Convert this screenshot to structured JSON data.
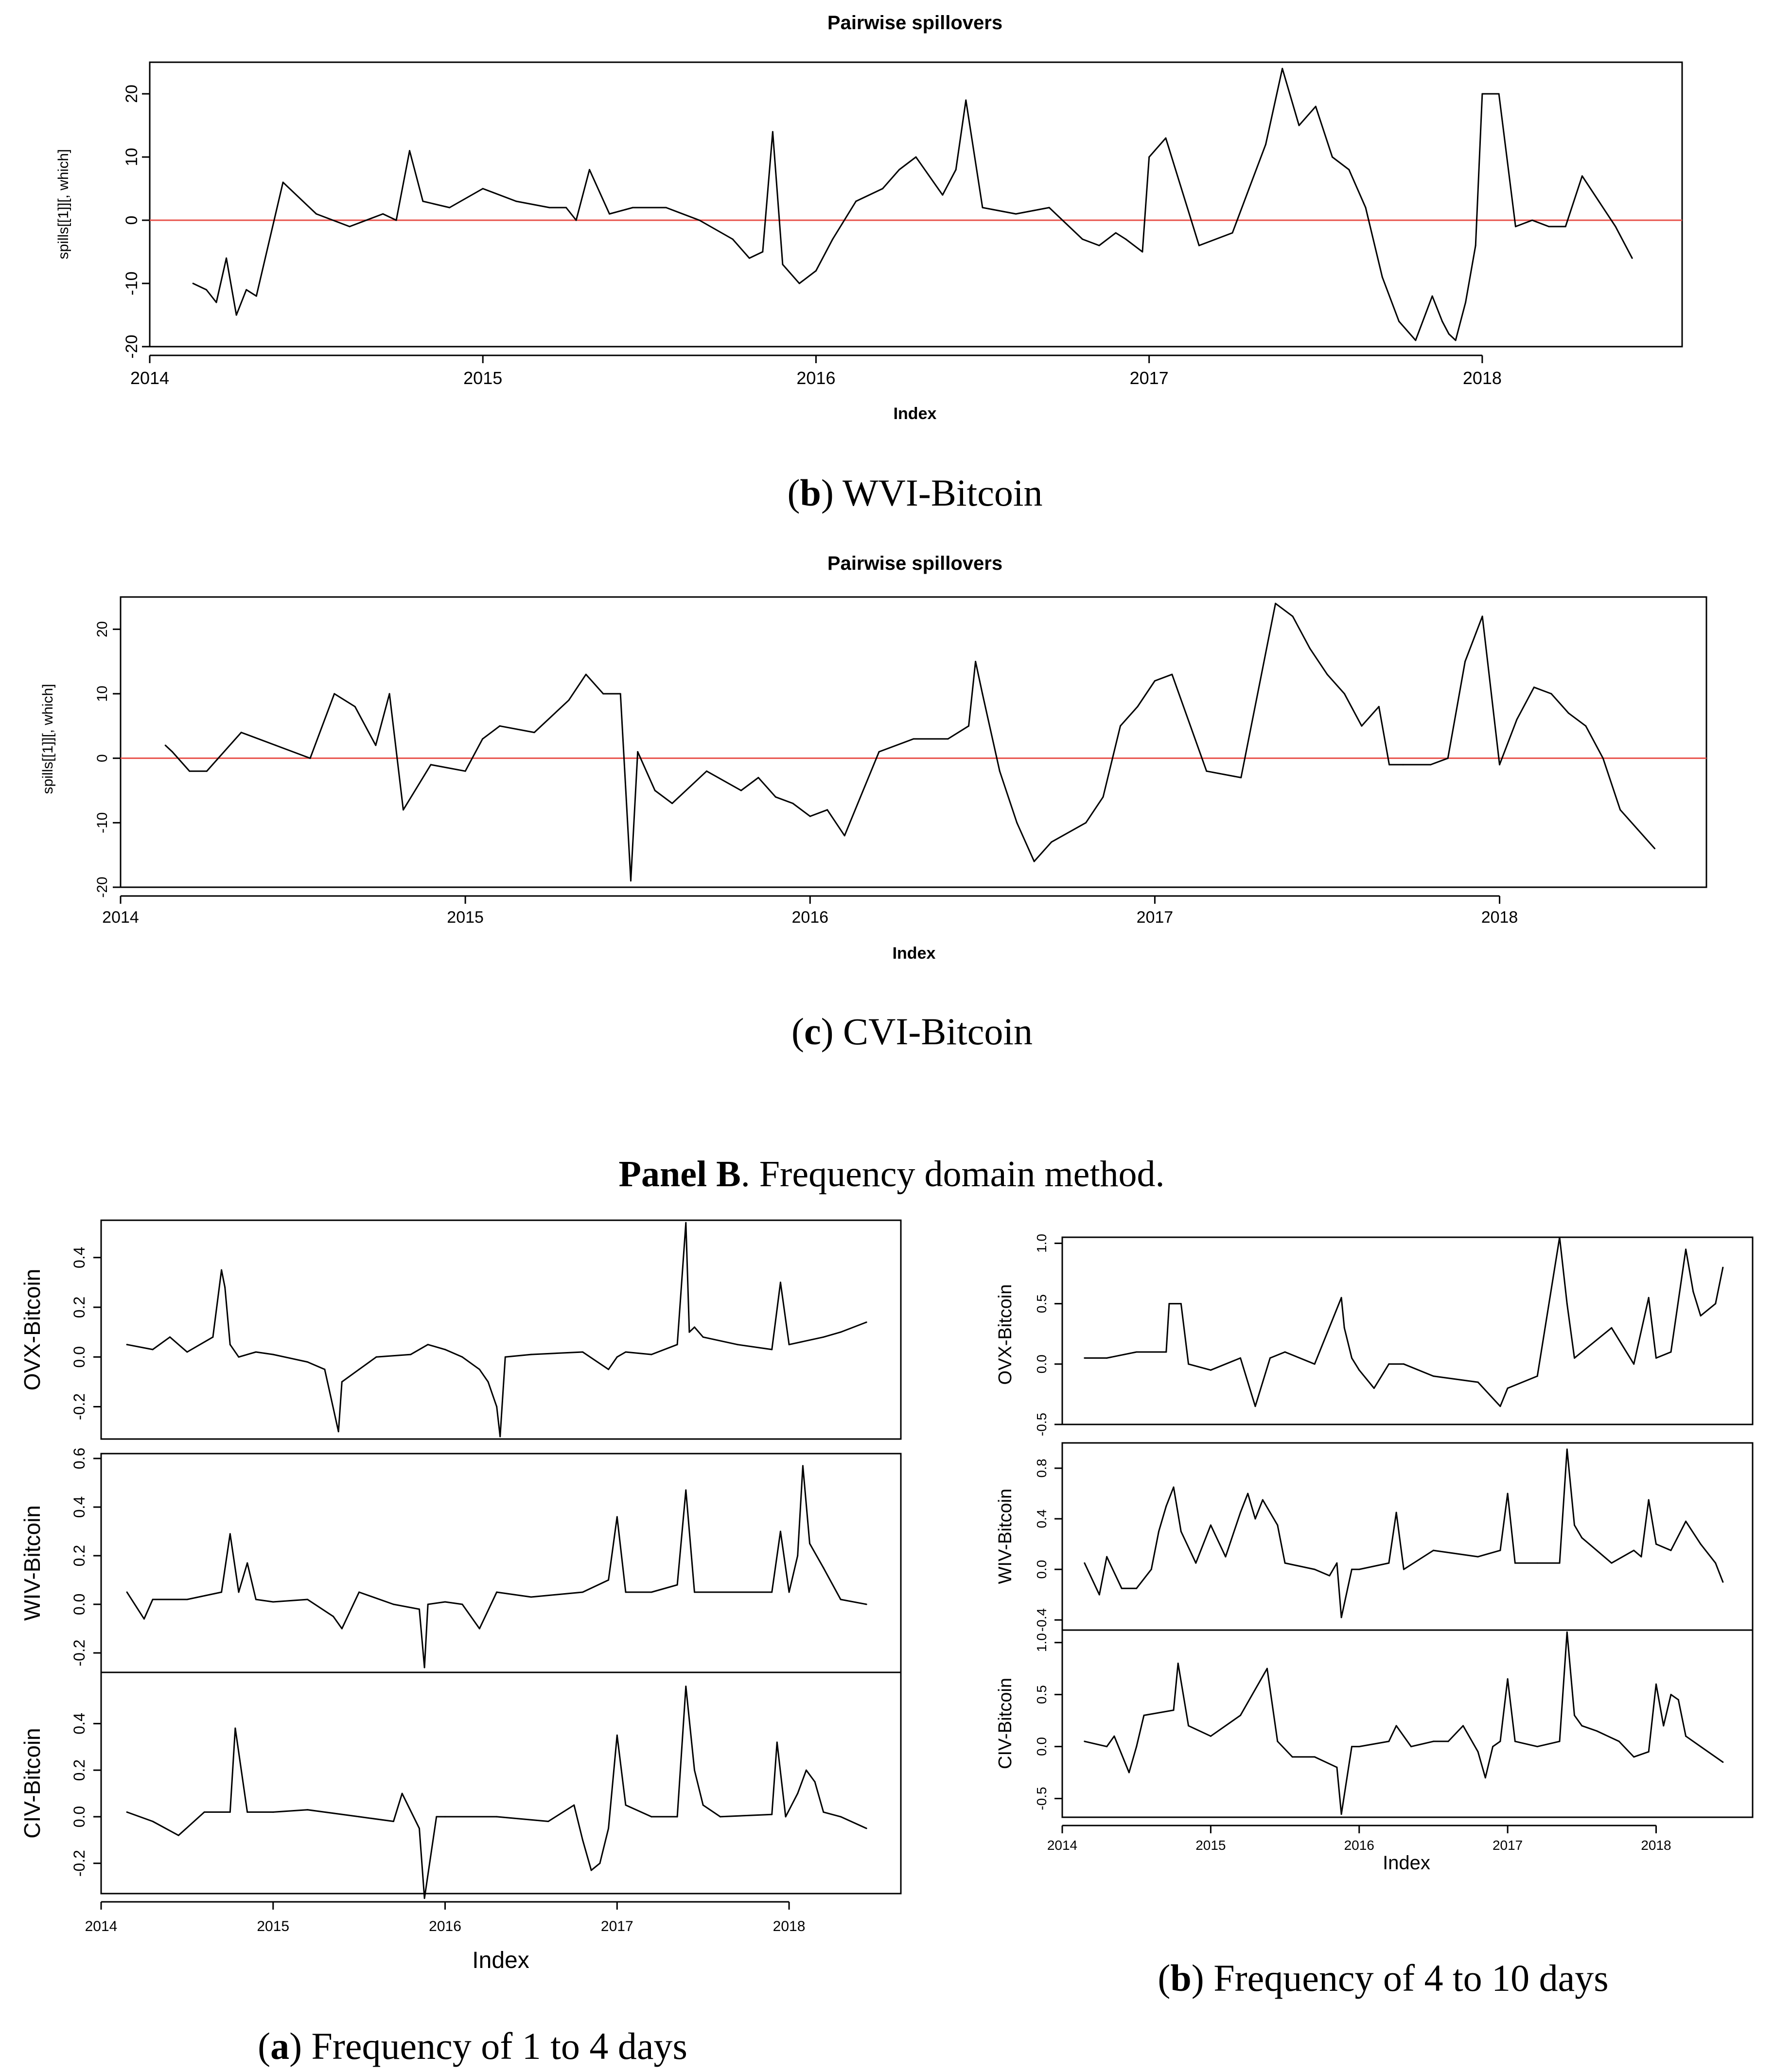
{
  "figure": {
    "caption_b": {
      "letter": "b",
      "text": ") WVI-Bitcoin"
    },
    "caption_c": {
      "letter": "c",
      "text": ") CVI-Bitcoin"
    },
    "panel_b_heading": {
      "bold": "Panel B",
      "text": ". Frequency domain method."
    },
    "caption_freq_a": {
      "letter": "a",
      "text": ") Frequency of 1 to 4 days"
    },
    "caption_freq_b": {
      "letter": "b",
      "text": ") Frequency of 4 to 10 days"
    }
  },
  "colors": {
    "line": "#000000",
    "zero_line": "#e8504a",
    "frame": "#000000"
  },
  "chart_data": [
    {
      "id": "wvi",
      "type": "line",
      "title": "Pairwise spillovers",
      "xlabel": "Index",
      "ylabel": "spills[[1]][, which]",
      "xlim": [
        2014,
        2018.6
      ],
      "ylim": [
        -20,
        25
      ],
      "xticks": [
        "2014",
        "2015",
        "2016",
        "2017",
        "2018"
      ],
      "yticks": [
        "-20",
        "-10",
        "0",
        "10",
        "20"
      ],
      "hline": 0,
      "x": [
        2014.13,
        2014.17,
        2014.2,
        2014.23,
        2014.26,
        2014.29,
        2014.32,
        2014.4,
        2014.5,
        2014.6,
        2014.7,
        2014.74,
        2014.78,
        2014.82,
        2014.9,
        2015.0,
        2015.1,
        2015.2,
        2015.25,
        2015.28,
        2015.32,
        2015.38,
        2015.45,
        2015.55,
        2015.65,
        2015.75,
        2015.8,
        2015.84,
        2015.87,
        2015.9,
        2015.95,
        2016.0,
        2016.05,
        2016.12,
        2016.2,
        2016.25,
        2016.3,
        2016.38,
        2016.42,
        2016.45,
        2016.5,
        2016.6,
        2016.7,
        2016.8,
        2016.85,
        2016.9,
        2016.93,
        2016.98,
        2017.0,
        2017.05,
        2017.15,
        2017.25,
        2017.3,
        2017.35,
        2017.4,
        2017.45,
        2017.5,
        2017.55,
        2017.6,
        2017.65,
        2017.7,
        2017.75,
        2017.8,
        2017.85,
        2017.88,
        2017.9,
        2017.92,
        2017.95,
        2017.98,
        2018.0,
        2018.05,
        2018.1,
        2018.15,
        2018.2,
        2018.25,
        2018.3,
        2018.35,
        2018.4,
        2018.45
      ],
      "y": [
        -10,
        -11,
        -13,
        -6,
        -15,
        -11,
        -12,
        6,
        1,
        -1,
        1,
        0,
        11,
        3,
        2,
        5,
        3,
        2,
        2,
        0,
        8,
        1,
        2,
        2,
        0,
        -3,
        -6,
        -5,
        14,
        -7,
        -10,
        -8,
        -3,
        3,
        5,
        8,
        10,
        4,
        8,
        19,
        2,
        1,
        2,
        -3,
        -4,
        -2,
        -3,
        -5,
        10,
        13,
        -4,
        -2,
        5,
        12,
        24,
        15,
        18,
        10,
        8,
        2,
        -9,
        -16,
        -19,
        -12,
        -16,
        -18,
        -19,
        -13,
        -4,
        20,
        20,
        -1,
        0,
        -1,
        -1,
        7,
        3,
        -1,
        -6
      ]
    },
    {
      "id": "cvi",
      "type": "line",
      "title": "Pairwise spillovers",
      "xlabel": "Index",
      "ylabel": "spills[[1]][, which]",
      "xlim": [
        2014,
        2018.6
      ],
      "ylim": [
        -20,
        25
      ],
      "xticks": [
        "2014",
        "2015",
        "2016",
        "2017",
        "2018"
      ],
      "yticks": [
        "-20",
        "-10",
        "0",
        "10",
        "20"
      ],
      "hline": 0,
      "x": [
        2014.13,
        2014.15,
        2014.2,
        2014.25,
        2014.35,
        2014.45,
        2014.55,
        2014.62,
        2014.68,
        2014.74,
        2014.78,
        2014.82,
        2014.9,
        2015.0,
        2015.05,
        2015.1,
        2015.2,
        2015.3,
        2015.35,
        2015.4,
        2015.45,
        2015.48,
        2015.5,
        2015.55,
        2015.6,
        2015.7,
        2015.8,
        2015.85,
        2015.9,
        2015.95,
        2016.0,
        2016.05,
        2016.1,
        2016.2,
        2016.3,
        2016.4,
        2016.46,
        2016.48,
        2016.5,
        2016.55,
        2016.6,
        2016.65,
        2016.7,
        2016.8,
        2016.85,
        2016.9,
        2016.95,
        2017.0,
        2017.05,
        2017.15,
        2017.25,
        2017.35,
        2017.4,
        2017.45,
        2017.5,
        2017.55,
        2017.6,
        2017.65,
        2017.68,
        2017.72,
        2017.8,
        2017.85,
        2017.9,
        2017.95,
        2018.0,
        2018.05,
        2018.1,
        2018.15,
        2018.2,
        2018.25,
        2018.3,
        2018.35,
        2018.4,
        2018.45
      ],
      "y": [
        2,
        1,
        -2,
        -2,
        4,
        2,
        0,
        10,
        8,
        2,
        10,
        -8,
        -1,
        -2,
        3,
        5,
        4,
        9,
        13,
        10,
        10,
        -19,
        1,
        -5,
        -7,
        -2,
        -5,
        -3,
        -6,
        -7,
        -9,
        -8,
        -12,
        1,
        3,
        3,
        5,
        15,
        10,
        -2,
        -10,
        -16,
        -13,
        -10,
        -6,
        5,
        8,
        12,
        13,
        -2,
        -3,
        24,
        22,
        17,
        13,
        10,
        5,
        8,
        -1,
        -1,
        -1,
        0,
        15,
        22,
        -1,
        6,
        11,
        10,
        7,
        5,
        0,
        -8,
        -11,
        -14
      ]
    },
    {
      "id": "freq_a_ovx",
      "type": "line",
      "ylabel": "OVX-Bitcoin",
      "xlim": [
        2014,
        2018.65
      ],
      "ylim": [
        -0.33,
        0.55
      ],
      "yticks": [
        "-0.2",
        "0.0",
        "0.2",
        "0.4"
      ],
      "x": [
        2014.15,
        2014.3,
        2014.4,
        2014.5,
        2014.65,
        2014.7,
        2014.72,
        2014.75,
        2014.8,
        2014.9,
        2015.0,
        2015.2,
        2015.3,
        2015.38,
        2015.4,
        2015.5,
        2015.6,
        2015.8,
        2015.9,
        2016.0,
        2016.1,
        2016.2,
        2016.25,
        2016.3,
        2016.32,
        2016.35,
        2016.5,
        2016.8,
        2016.95,
        2017.0,
        2017.05,
        2017.2,
        2017.35,
        2017.4,
        2017.42,
        2017.45,
        2017.5,
        2017.7,
        2017.9,
        2017.95,
        2018.0,
        2018.2,
        2018.3,
        2018.45
      ],
      "y": [
        0.05,
        0.03,
        0.08,
        0.02,
        0.08,
        0.35,
        0.28,
        0.05,
        0.0,
        0.02,
        0.01,
        -0.02,
        -0.05,
        -0.3,
        -0.1,
        -0.05,
        0.0,
        0.01,
        0.05,
        0.03,
        0.0,
        -0.05,
        -0.1,
        -0.2,
        -0.32,
        0.0,
        0.01,
        0.02,
        -0.05,
        0.0,
        0.02,
        0.01,
        0.05,
        0.54,
        0.1,
        0.12,
        0.08,
        0.05,
        0.03,
        0.3,
        0.05,
        0.08,
        0.1,
        0.14
      ]
    },
    {
      "id": "freq_a_wiv",
      "type": "line",
      "ylabel": "WIV-Bitcoin",
      "xlim": [
        2014,
        2018.65
      ],
      "ylim": [
        -0.28,
        0.62
      ],
      "yticks": [
        "-0.2",
        "0.0",
        "0.2",
        "0.4",
        "0.6"
      ],
      "x": [
        2014.15,
        2014.25,
        2014.3,
        2014.5,
        2014.7,
        2014.75,
        2014.8,
        2014.85,
        2014.9,
        2015.0,
        2015.2,
        2015.35,
        2015.4,
        2015.5,
        2015.7,
        2015.85,
        2015.88,
        2015.9,
        2016.0,
        2016.1,
        2016.2,
        2016.3,
        2016.5,
        2016.8,
        2016.95,
        2017.0,
        2017.05,
        2017.2,
        2017.35,
        2017.4,
        2017.45,
        2017.5,
        2017.7,
        2017.9,
        2017.95,
        2018.0,
        2018.05,
        2018.08,
        2018.12,
        2018.2,
        2018.3,
        2018.45
      ],
      "y": [
        0.05,
        -0.06,
        0.02,
        0.02,
        0.05,
        0.29,
        0.05,
        0.17,
        0.02,
        0.01,
        0.02,
        -0.05,
        -0.1,
        0.05,
        0.0,
        -0.02,
        -0.26,
        0.0,
        0.01,
        0.0,
        -0.1,
        0.05,
        0.03,
        0.05,
        0.1,
        0.36,
        0.05,
        0.05,
        0.08,
        0.47,
        0.05,
        0.05,
        0.05,
        0.05,
        0.3,
        0.05,
        0.2,
        0.57,
        0.25,
        0.15,
        0.02,
        0.0
      ]
    },
    {
      "id": "freq_a_civ",
      "type": "line",
      "ylabel": "CIV-Bitcoin",
      "xlim": [
        2014,
        2018.65
      ],
      "ylim": [
        -0.33,
        0.62
      ],
      "yticks": [
        "-0.2",
        "0.0",
        "0.2",
        "0.4"
      ],
      "x": [
        2014.15,
        2014.3,
        2014.45,
        2014.6,
        2014.75,
        2014.78,
        2014.85,
        2015.0,
        2015.2,
        2015.5,
        2015.7,
        2015.75,
        2015.85,
        2015.88,
        2015.95,
        2016.0,
        2016.3,
        2016.6,
        2016.75,
        2016.8,
        2016.85,
        2016.9,
        2016.95,
        2017.0,
        2017.05,
        2017.2,
        2017.35,
        2017.4,
        2017.45,
        2017.5,
        2017.6,
        2017.9,
        2017.93,
        2017.98,
        2018.05,
        2018.1,
        2018.15,
        2018.2,
        2018.3,
        2018.45
      ],
      "y": [
        0.02,
        -0.02,
        -0.08,
        0.02,
        0.02,
        0.38,
        0.02,
        0.02,
        0.03,
        0.0,
        -0.02,
        0.1,
        -0.05,
        -0.35,
        0.0,
        0.0,
        0.0,
        -0.02,
        0.05,
        -0.1,
        -0.23,
        -0.2,
        -0.05,
        0.35,
        0.05,
        0.0,
        0.0,
        0.56,
        0.2,
        0.05,
        0.0,
        0.01,
        0.32,
        0.0,
        0.1,
        0.2,
        0.15,
        0.02,
        0.0,
        -0.05
      ]
    },
    {
      "id": "freq_b_ovx",
      "type": "line",
      "ylabel": "OVX-Bitcoin",
      "xlim": [
        2014,
        2018.65
      ],
      "ylim": [
        -0.5,
        1.05
      ],
      "yticks": [
        "-0.5",
        "0.0",
        "0.5",
        "1.0"
      ],
      "x": [
        2014.15,
        2014.3,
        2014.5,
        2014.7,
        2014.72,
        2014.8,
        2014.85,
        2015.0,
        2015.2,
        2015.3,
        2015.4,
        2015.5,
        2015.7,
        2015.88,
        2015.9,
        2015.95,
        2016.0,
        2016.1,
        2016.2,
        2016.3,
        2016.5,
        2016.8,
        2016.95,
        2017.0,
        2017.2,
        2017.35,
        2017.4,
        2017.45,
        2017.5,
        2017.7,
        2017.85,
        2017.95,
        2018.0,
        2018.1,
        2018.2,
        2018.25,
        2018.3,
        2018.4,
        2018.45
      ],
      "y": [
        0.05,
        0.05,
        0.1,
        0.1,
        0.5,
        0.5,
        0.0,
        -0.05,
        0.05,
        -0.35,
        0.05,
        0.1,
        0.0,
        0.55,
        0.3,
        0.05,
        -0.05,
        -0.2,
        0.0,
        0.0,
        -0.1,
        -0.15,
        -0.35,
        -0.2,
        -0.1,
        1.05,
        0.5,
        0.05,
        0.1,
        0.3,
        0.0,
        0.55,
        0.05,
        0.1,
        0.95,
        0.6,
        0.4,
        0.5,
        0.8
      ]
    },
    {
      "id": "freq_b_wiv",
      "type": "line",
      "ylabel": "WIV-Bitcoin",
      "xlim": [
        2014,
        2018.65
      ],
      "ylim": [
        -0.48,
        1.0
      ],
      "yticks": [
        "-0.4",
        "0.0",
        "0.4",
        "0.8"
      ],
      "x": [
        2014.15,
        2014.25,
        2014.3,
        2014.4,
        2014.5,
        2014.6,
        2014.65,
        2014.7,
        2014.75,
        2014.8,
        2014.9,
        2015.0,
        2015.1,
        2015.2,
        2015.25,
        2015.3,
        2015.35,
        2015.45,
        2015.5,
        2015.7,
        2015.8,
        2015.85,
        2015.88,
        2015.95,
        2016.0,
        2016.2,
        2016.25,
        2016.3,
        2016.5,
        2016.8,
        2016.95,
        2017.0,
        2017.05,
        2017.2,
        2017.35,
        2017.4,
        2017.45,
        2017.5,
        2017.7,
        2017.85,
        2017.9,
        2017.95,
        2018.0,
        2018.1,
        2018.2,
        2018.3,
        2018.4,
        2018.45
      ],
      "y": [
        0.05,
        -0.2,
        0.1,
        -0.15,
        -0.15,
        0.0,
        0.3,
        0.5,
        0.65,
        0.3,
        0.05,
        0.35,
        0.1,
        0.45,
        0.6,
        0.4,
        0.55,
        0.35,
        0.05,
        0.0,
        -0.05,
        0.05,
        -0.38,
        0.0,
        0.0,
        0.05,
        0.45,
        0.0,
        0.15,
        0.1,
        0.15,
        0.6,
        0.05,
        0.05,
        0.05,
        0.95,
        0.35,
        0.25,
        0.05,
        0.15,
        0.1,
        0.55,
        0.2,
        0.15,
        0.38,
        0.2,
        0.05,
        -0.1
      ]
    },
    {
      "id": "freq_b_civ",
      "type": "line",
      "ylabel": "CIV-Bitcoin",
      "xlim": [
        2014,
        2018.65
      ],
      "ylim": [
        -0.68,
        1.12
      ],
      "yticks": [
        "-0.5",
        "0.0",
        "0.5",
        "1.0"
      ],
      "x": [
        2014.15,
        2014.3,
        2014.35,
        2014.45,
        2014.5,
        2014.55,
        2014.75,
        2014.78,
        2014.85,
        2015.0,
        2015.2,
        2015.38,
        2015.45,
        2015.55,
        2015.7,
        2015.85,
        2015.88,
        2015.95,
        2016.0,
        2016.2,
        2016.25,
        2016.35,
        2016.5,
        2016.6,
        2016.7,
        2016.8,
        2016.85,
        2016.9,
        2016.95,
        2017.0,
        2017.05,
        2017.2,
        2017.35,
        2017.4,
        2017.45,
        2017.5,
        2017.6,
        2017.75,
        2017.85,
        2017.95,
        2018.0,
        2018.05,
        2018.1,
        2018.15,
        2018.2,
        2018.3,
        2018.45
      ],
      "y": [
        0.05,
        0.0,
        0.1,
        -0.25,
        0.0,
        0.3,
        0.35,
        0.8,
        0.2,
        0.1,
        0.3,
        0.75,
        0.05,
        -0.1,
        -0.1,
        -0.2,
        -0.65,
        0.0,
        0.0,
        0.05,
        0.2,
        0.0,
        0.05,
        0.05,
        0.2,
        -0.05,
        -0.3,
        0.0,
        0.05,
        0.65,
        0.05,
        0.0,
        0.05,
        1.1,
        0.3,
        0.2,
        0.15,
        0.05,
        -0.1,
        -0.05,
        0.6,
        0.2,
        0.5,
        0.45,
        0.1,
        0.0,
        -0.15
      ]
    },
    {
      "id": "freq_a_axis",
      "type": "axis",
      "xlabel": "Index",
      "xticks": [
        "2014",
        "2015",
        "2016",
        "2017",
        "2018"
      ]
    },
    {
      "id": "freq_b_axis",
      "type": "axis",
      "xlabel": "Index",
      "xticks": [
        "2014",
        "2015",
        "2016",
        "2017",
        "2018"
      ]
    }
  ]
}
